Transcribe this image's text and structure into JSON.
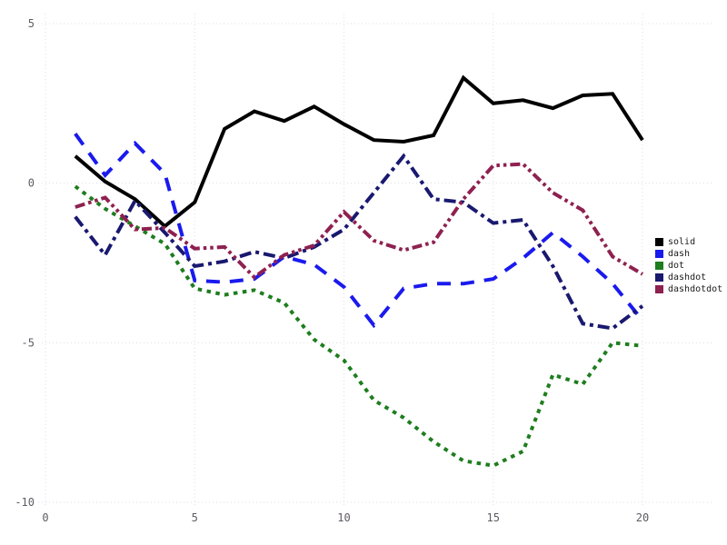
{
  "chart_data": {
    "type": "line",
    "title": "",
    "xlabel": "",
    "ylabel": "",
    "xlim": [
      0,
      20
    ],
    "ylim": [
      -10,
      5
    ],
    "xticks": [
      0,
      5,
      10,
      15,
      20
    ],
    "yticks": [
      -10,
      -5,
      0,
      5
    ],
    "grid": true,
    "grid_style": "dotted",
    "grid_color": "#dedee8",
    "tick_color": "#5f5a64",
    "legend_position": "right-outside",
    "x": [
      1,
      2,
      3,
      4,
      5,
      6,
      7,
      8,
      9,
      10,
      11,
      12,
      13,
      14,
      15,
      16,
      17,
      18,
      19,
      20
    ],
    "series": [
      {
        "name": "solid",
        "color": "#000000",
        "dash": "solid",
        "values": [
          0.85,
          0.05,
          -0.5,
          -1.35,
          -0.6,
          1.7,
          2.25,
          1.95,
          2.4,
          1.85,
          1.35,
          1.3,
          1.5,
          3.3,
          2.5,
          2.6,
          2.35,
          2.75,
          2.8,
          1.35
        ]
      },
      {
        "name": "dash",
        "color": "#1a1aee",
        "dash": "dash",
        "values": [
          1.55,
          0.25,
          1.25,
          0.3,
          -3.05,
          -3.1,
          -3.0,
          -2.3,
          -2.55,
          -3.25,
          -4.45,
          -3.3,
          -3.15,
          -3.15,
          -3.0,
          -2.35,
          -1.55,
          -2.3,
          -3.15,
          -4.3
        ]
      },
      {
        "name": "dot",
        "color": "#1e7d1e",
        "dash": "dot",
        "values": [
          -0.1,
          -0.8,
          -1.35,
          -1.9,
          -3.3,
          -3.5,
          -3.35,
          -3.75,
          -4.9,
          -5.55,
          -6.8,
          -7.35,
          -8.1,
          -8.7,
          -8.85,
          -8.4,
          -6.0,
          -6.3,
          -5.0,
          -5.1
        ]
      },
      {
        "name": "dashdot",
        "color": "#191970",
        "dash": "dashdot",
        "values": [
          -1.05,
          -2.25,
          -0.55,
          -1.55,
          -2.6,
          -2.45,
          -2.15,
          -2.35,
          -2.0,
          -1.45,
          -0.3,
          0.85,
          -0.5,
          -0.6,
          -1.25,
          -1.15,
          -2.6,
          -4.4,
          -4.55,
          -3.85
        ]
      },
      {
        "name": "dashdotdot",
        "color": "#8e2150",
        "dash": "dashdotdot",
        "values": [
          -0.75,
          -0.45,
          -1.45,
          -1.4,
          -2.05,
          -2.0,
          -2.95,
          -2.25,
          -1.95,
          -0.9,
          -1.8,
          -2.1,
          -1.85,
          -0.5,
          0.55,
          0.6,
          -0.3,
          -0.85,
          -2.3,
          -2.85
        ]
      }
    ],
    "legend": [
      "solid",
      "dash",
      "dot",
      "dashdot",
      "dashdotdot"
    ]
  }
}
